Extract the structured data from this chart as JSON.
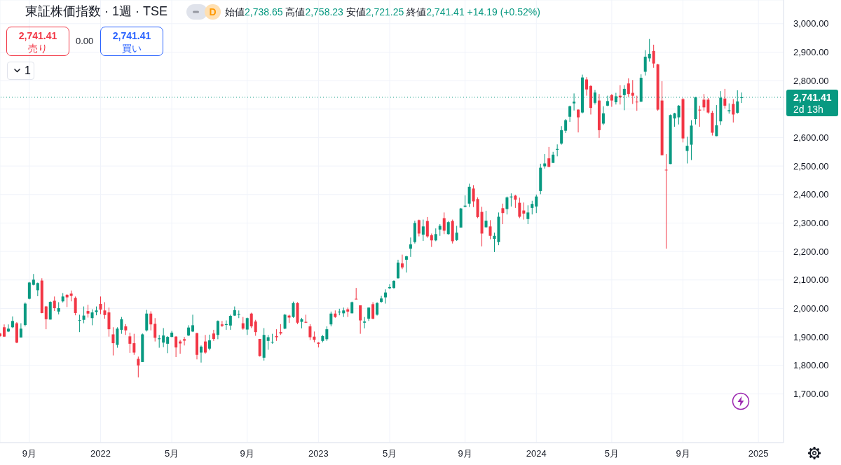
{
  "chart_data": {
    "type": "candlestick",
    "title": "東証株価指数 · 1週 · TSE",
    "x": [
      "2021-07-19",
      "2021-07-26",
      "2021-08-02",
      "2021-08-09",
      "2021-08-16",
      "2021-08-23",
      "2021-08-30",
      "2021-09-06",
      "2021-09-13",
      "2021-09-20",
      "2021-09-27",
      "2021-10-04",
      "2021-10-11",
      "2021-10-18",
      "2021-10-25",
      "2021-11-01",
      "2021-11-08",
      "2021-11-15",
      "2021-11-22",
      "2021-11-29",
      "2021-12-06",
      "2021-12-13",
      "2021-12-20",
      "2021-12-27",
      "2022-01-03",
      "2022-01-10",
      "2022-01-17",
      "2022-01-24",
      "2022-01-31",
      "2022-02-07",
      "2022-02-14",
      "2022-02-21",
      "2022-02-28",
      "2022-03-07",
      "2022-03-14",
      "2022-03-21",
      "2022-03-28",
      "2022-04-04",
      "2022-04-11",
      "2022-04-18",
      "2022-04-25",
      "2022-05-02",
      "2022-05-09",
      "2022-05-16",
      "2022-05-23",
      "2022-05-30",
      "2022-06-06",
      "2022-06-13",
      "2022-06-20",
      "2022-06-27",
      "2022-07-04",
      "2022-07-11",
      "2022-07-18",
      "2022-07-25",
      "2022-08-01",
      "2022-08-08",
      "2022-08-15",
      "2022-08-22",
      "2022-08-29",
      "2022-09-05",
      "2022-09-12",
      "2022-09-19",
      "2022-09-26",
      "2022-10-03",
      "2022-10-10",
      "2022-10-17",
      "2022-10-24",
      "2022-10-31",
      "2022-11-07",
      "2022-11-14",
      "2022-11-21",
      "2022-11-28",
      "2022-12-05",
      "2022-12-12",
      "2022-12-19",
      "2022-12-26",
      "2023-01-02",
      "2023-01-09",
      "2023-01-16",
      "2023-01-23",
      "2023-01-30",
      "2023-02-06",
      "2023-02-13",
      "2023-02-20",
      "2023-02-27",
      "2023-03-06",
      "2023-03-13",
      "2023-03-20",
      "2023-03-27",
      "2023-04-03",
      "2023-04-10",
      "2023-04-17",
      "2023-04-24",
      "2023-05-01",
      "2023-05-08",
      "2023-05-15",
      "2023-05-22",
      "2023-05-29",
      "2023-06-05",
      "2023-06-12",
      "2023-06-19",
      "2023-06-26",
      "2023-07-03",
      "2023-07-10",
      "2023-07-17",
      "2023-07-24",
      "2023-07-31",
      "2023-08-07",
      "2023-08-14",
      "2023-08-21",
      "2023-08-28",
      "2023-09-04",
      "2023-09-11",
      "2023-09-18",
      "2023-09-25",
      "2023-10-02",
      "2023-10-09",
      "2023-10-16",
      "2023-10-23",
      "2023-10-30",
      "2023-11-06",
      "2023-11-13",
      "2023-11-20",
      "2023-11-27",
      "2023-12-04",
      "2023-12-11",
      "2023-12-18",
      "2023-12-25",
      "2024-01-01",
      "2024-01-08",
      "2024-01-15",
      "2024-01-22",
      "2024-01-29",
      "2024-02-05",
      "2024-02-12",
      "2024-02-19",
      "2024-02-26",
      "2024-03-04",
      "2024-03-11",
      "2024-03-18",
      "2024-03-25",
      "2024-04-01",
      "2024-04-08",
      "2024-04-15",
      "2024-04-22",
      "2024-04-29",
      "2024-05-06",
      "2024-05-13",
      "2024-05-20",
      "2024-05-27",
      "2024-06-03",
      "2024-06-10",
      "2024-06-17",
      "2024-06-24",
      "2024-07-01",
      "2024-07-08",
      "2024-07-15",
      "2024-07-22",
      "2024-07-29",
      "2024-08-05",
      "2024-08-12",
      "2024-08-19",
      "2024-08-26",
      "2024-09-02",
      "2024-09-09",
      "2024-09-16",
      "2024-09-23",
      "2024-09-30",
      "2024-10-07",
      "2024-10-14",
      "2024-10-21",
      "2024-10-28",
      "2024-11-04",
      "2024-11-11",
      "2024-11-18",
      "2024-11-25",
      "2024-12-02",
      "2024-12-09"
    ],
    "ohlc": [
      [
        1912,
        1914,
        1900,
        1903
      ],
      [
        1934,
        1944,
        1901,
        1901
      ],
      [
        1919,
        1944,
        1917,
        1929
      ],
      [
        1934,
        1972,
        1931,
        1956
      ],
      [
        1948,
        1952,
        1878,
        1880
      ],
      [
        1898,
        1948,
        1898,
        1929
      ],
      [
        1942,
        2021,
        1937,
        2017
      ],
      [
        2034,
        2093,
        2032,
        2091
      ],
      [
        2083,
        2121,
        2081,
        2101
      ],
      [
        2064,
        2091,
        2043,
        2089
      ],
      [
        2098,
        2106,
        1983,
        1984
      ],
      [
        2007,
        2009,
        1927,
        1962
      ],
      [
        1961,
        2025,
        1961,
        2023
      ],
      [
        2027,
        2042,
        1991,
        2001
      ],
      [
        1989,
        2022,
        1979,
        2001
      ],
      [
        2025,
        2054,
        2021,
        2042
      ],
      [
        2048,
        2050,
        2005,
        2039
      ],
      [
        2052,
        2063,
        2025,
        2044
      ],
      [
        2037,
        2042,
        1976,
        1984
      ],
      [
        1957,
        1978,
        1917,
        1959
      ],
      [
        1960,
        2007,
        1948,
        1975
      ],
      [
        1991,
        2013,
        1968,
        1982
      ],
      [
        1966,
        1997,
        1941,
        1986
      ],
      [
        1987,
        2007,
        1976,
        1993
      ],
      [
        2016,
        2042,
        1980,
        1996
      ],
      [
        1993,
        2022,
        1964,
        1977
      ],
      [
        1986,
        2003,
        1901,
        1927
      ],
      [
        1909,
        1934,
        1835,
        1878
      ],
      [
        1872,
        1934,
        1862,
        1929
      ],
      [
        1925,
        1970,
        1911,
        1962
      ],
      [
        1937,
        1945,
        1907,
        1923
      ],
      [
        1902,
        1915,
        1844,
        1876
      ],
      [
        1878,
        1911,
        1837,
        1845
      ],
      [
        1823,
        1831,
        1758,
        1800
      ],
      [
        1812,
        1912,
        1812,
        1909
      ],
      [
        1923,
        1995,
        1919,
        1982
      ],
      [
        1982,
        1990,
        1923,
        1944
      ],
      [
        1946,
        1966,
        1884,
        1897
      ],
      [
        1892,
        1907,
        1862,
        1895
      ],
      [
        1880,
        1931,
        1864,
        1905
      ],
      [
        1876,
        1903,
        1843,
        1900
      ],
      [
        1900,
        1921,
        1899,
        1915
      ],
      [
        1901,
        1903,
        1829,
        1863
      ],
      [
        1884,
        1890,
        1841,
        1877
      ],
      [
        1892,
        1900,
        1870,
        1887
      ],
      [
        1905,
        1941,
        1903,
        1933
      ],
      [
        1919,
        1978,
        1917,
        1941
      ],
      [
        1913,
        1915,
        1821,
        1837
      ],
      [
        1845,
        1870,
        1810,
        1866
      ],
      [
        1884,
        1907,
        1841,
        1845
      ],
      [
        1859,
        1908,
        1853,
        1888
      ],
      [
        1912,
        1925,
        1886,
        1893
      ],
      [
        1907,
        1958,
        1892,
        1956
      ],
      [
        1944,
        1956,
        1935,
        1939
      ],
      [
        1942,
        1958,
        1925,
        1945
      ],
      [
        1940,
        1978,
        1925,
        1974
      ],
      [
        1975,
        2007,
        1974,
        1994
      ],
      [
        1979,
        1993,
        1966,
        1980
      ],
      [
        1948,
        1970,
        1925,
        1929
      ],
      [
        1926,
        1968,
        1907,
        1966
      ],
      [
        1982,
        1985,
        1931,
        1937
      ],
      [
        1954,
        1960,
        1904,
        1917
      ],
      [
        1893,
        1893,
        1831,
        1833
      ],
      [
        1827,
        1931,
        1817,
        1907
      ],
      [
        1886,
        1907,
        1855,
        1899
      ],
      [
        1881,
        1911,
        1876,
        1883
      ],
      [
        1903,
        1927,
        1886,
        1899
      ],
      [
        1917,
        1945,
        1907,
        1912
      ],
      [
        1929,
        1981,
        1927,
        1978
      ],
      [
        1975,
        1978,
        1949,
        1968
      ],
      [
        1970,
        2024,
        1967,
        2019
      ],
      [
        2019,
        2022,
        1945,
        1950
      ],
      [
        1953,
        1967,
        1930,
        1962
      ],
      [
        1953,
        1978,
        1949,
        1950
      ],
      [
        1937,
        1945,
        1889,
        1899
      ],
      [
        1901,
        1919,
        1881,
        1890
      ],
      [
        1880,
        1882,
        1863,
        1876
      ],
      [
        1886,
        1907,
        1881,
        1903
      ],
      [
        1892,
        1937,
        1886,
        1927
      ],
      [
        1944,
        1989,
        1937,
        1982
      ],
      [
        1982,
        1993,
        1967,
        1970
      ],
      [
        1986,
        1999,
        1976,
        1989
      ],
      [
        1983,
        2003,
        1970,
        1993
      ],
      [
        1997,
        2003,
        1970,
        1989
      ],
      [
        1983,
        2024,
        1983,
        2022
      ],
      [
        2034,
        2072,
        2032,
        2032
      ],
      [
        2011,
        2011,
        1911,
        1958
      ],
      [
        1950,
        1970,
        1930,
        1954
      ],
      [
        1964,
        2003,
        1956,
        2003
      ],
      [
        2015,
        2022,
        1962,
        1964
      ],
      [
        1978,
        2022,
        1975,
        2019
      ],
      [
        2023,
        2044,
        2020,
        2035
      ],
      [
        2039,
        2067,
        2017,
        2056
      ],
      [
        2071,
        2085,
        2068,
        2075
      ],
      [
        2072,
        2099,
        2069,
        2097
      ],
      [
        2106,
        2171,
        2105,
        2161
      ],
      [
        2158,
        2189,
        2138,
        2144
      ],
      [
        2171,
        2185,
        2126,
        2183
      ],
      [
        2210,
        2249,
        2181,
        2225
      ],
      [
        2233,
        2308,
        2228,
        2300
      ],
      [
        2310,
        2312,
        2253,
        2263
      ],
      [
        2259,
        2312,
        2237,
        2288
      ],
      [
        2307,
        2321,
        2248,
        2253
      ],
      [
        2257,
        2263,
        2216,
        2239
      ],
      [
        2239,
        2281,
        2236,
        2261
      ],
      [
        2277,
        2296,
        2255,
        2290
      ],
      [
        2317,
        2337,
        2261,
        2273
      ],
      [
        2261,
        2307,
        2259,
        2303
      ],
      [
        2307,
        2312,
        2228,
        2236
      ],
      [
        2240,
        2290,
        2237,
        2266
      ],
      [
        2284,
        2353,
        2284,
        2351
      ],
      [
        2357,
        2397,
        2355,
        2361
      ],
      [
        2368,
        2438,
        2356,
        2427
      ],
      [
        2421,
        2433,
        2356,
        2376
      ],
      [
        2384,
        2390,
        2317,
        2321
      ],
      [
        2339,
        2357,
        2218,
        2263
      ],
      [
        2285,
        2343,
        2284,
        2308
      ],
      [
        2288,
        2310,
        2243,
        2255
      ],
      [
        2244,
        2266,
        2198,
        2255
      ],
      [
        2233,
        2337,
        2222,
        2322
      ],
      [
        2352,
        2368,
        2296,
        2335
      ],
      [
        2349,
        2393,
        2330,
        2390
      ],
      [
        2390,
        2404,
        2358,
        2393
      ],
      [
        2396,
        2399,
        2353,
        2382
      ],
      [
        2371,
        2389,
        2317,
        2322
      ],
      [
        2344,
        2372,
        2312,
        2333
      ],
      [
        2314,
        2362,
        2296,
        2337
      ],
      [
        2353,
        2378,
        2330,
        2367
      ],
      [
        2358,
        2400,
        2335,
        2393
      ],
      [
        2412,
        2508,
        2401,
        2494
      ],
      [
        2499,
        2542,
        2491,
        2509
      ],
      [
        2527,
        2567,
        2497,
        2497
      ],
      [
        2511,
        2550,
        2511,
        2540
      ],
      [
        2557,
        2576,
        2534,
        2560
      ],
      [
        2579,
        2640,
        2575,
        2626
      ],
      [
        2624,
        2665,
        2616,
        2661
      ],
      [
        2673,
        2712,
        2655,
        2710
      ],
      [
        2720,
        2755,
        2695,
        2726
      ],
      [
        2698,
        2699,
        2618,
        2671
      ],
      [
        2688,
        2821,
        2685,
        2811
      ],
      [
        2804,
        2812,
        2747,
        2769
      ],
      [
        2781,
        2784,
        2681,
        2704
      ],
      [
        2722,
        2767,
        2716,
        2758
      ],
      [
        2730,
        2753,
        2599,
        2626
      ],
      [
        2649,
        2710,
        2644,
        2685
      ],
      [
        2712,
        2747,
        2710,
        2728
      ],
      [
        2749,
        2753,
        2708,
        2730
      ],
      [
        2724,
        2757,
        2716,
        2745
      ],
      [
        2747,
        2784,
        2716,
        2741
      ],
      [
        2749,
        2784,
        2696,
        2771
      ],
      [
        2790,
        2808,
        2743,
        2753
      ],
      [
        2757,
        2802,
        2718,
        2747
      ],
      [
        2726,
        2747,
        2694,
        2724
      ],
      [
        2726,
        2822,
        2725,
        2810
      ],
      [
        2831,
        2907,
        2818,
        2884
      ],
      [
        2878,
        2946,
        2867,
        2894
      ],
      [
        2904,
        2926,
        2845,
        2860
      ],
      [
        2857,
        2859,
        2694,
        2698
      ],
      [
        2730,
        2798,
        2538,
        2538
      ],
      [
        2487,
        2542,
        2210,
        2485
      ],
      [
        2507,
        2681,
        2507,
        2679
      ],
      [
        2667,
        2687,
        2638,
        2685
      ],
      [
        2671,
        2714,
        2646,
        2712
      ],
      [
        2735,
        2739,
        2583,
        2597
      ],
      [
        2553,
        2603,
        2509,
        2571
      ],
      [
        2575,
        2661,
        2521,
        2642
      ],
      [
        2665,
        2743,
        2646,
        2741
      ],
      [
        2698,
        2712,
        2638,
        2695
      ],
      [
        2733,
        2753,
        2694,
        2706
      ],
      [
        2733,
        2739,
        2684,
        2688
      ],
      [
        2687,
        2694,
        2607,
        2617
      ],
      [
        2605,
        2714,
        2605,
        2643
      ],
      [
        2657,
        2763,
        2644,
        2740
      ],
      [
        2737,
        2771,
        2702,
        2712
      ],
      [
        2692,
        2720,
        2684,
        2696
      ],
      [
        2718,
        2735,
        2653,
        2681
      ],
      [
        2687,
        2766,
        2684,
        2727
      ],
      [
        2738.65,
        2758.23,
        2721.25,
        2741.41
      ]
    ],
    "colors": [
      "#f23645",
      "#f23645",
      "#089981",
      "#089981",
      "#f23645",
      "#089981",
      "#089981",
      "#089981",
      "#089981",
      "#089981",
      "#f23645",
      "#f23645",
      "#089981",
      "#f23645",
      "#089981",
      "#089981",
      "#f23645",
      "#f23645",
      "#f23645",
      "#089981",
      "#089981",
      "#f23645",
      "#089981",
      "#089981",
      "#f23645",
      "#f23645",
      "#f23645",
      "#f23645",
      "#089981",
      "#089981",
      "#f23645",
      "#f23645",
      "#f23645",
      "#f23645",
      "#089981",
      "#089981",
      "#f23645",
      "#f23645",
      "#089981",
      "#089981",
      "#089981",
      "#089981",
      "#f23645",
      "#f23645",
      "#f23645",
      "#089981",
      "#089981",
      "#f23645",
      "#089981",
      "#f23645",
      "#089981",
      "#f23645",
      "#089981",
      "#f23645",
      "#089981",
      "#089981",
      "#089981",
      "#089981",
      "#f23645",
      "#089981",
      "#f23645",
      "#f23645",
      "#f23645",
      "#089981",
      "#089981",
      "#089981",
      "#f23645",
      "#f23645",
      "#089981",
      "#f23645",
      "#089981",
      "#f23645",
      "#089981",
      "#f23645",
      "#f23645",
      "#f23645",
      "#f23645",
      "#089981",
      "#089981",
      "#089981",
      "#f23645",
      "#089981",
      "#089981",
      "#f23645",
      "#089981",
      "#f23645",
      "#f23645",
      "#089981",
      "#089981",
      "#f23645",
      "#089981",
      "#089981",
      "#089981",
      "#089981",
      "#089981",
      "#089981",
      "#f23645",
      "#089981",
      "#089981",
      "#089981",
      "#f23645",
      "#089981",
      "#f23645",
      "#f23645",
      "#089981",
      "#089981",
      "#f23645",
      "#089981",
      "#f23645",
      "#089981",
      "#089981",
      "#089981",
      "#089981",
      "#f23645",
      "#f23645",
      "#f23645",
      "#089981",
      "#f23645",
      "#089981",
      "#089981",
      "#f23645",
      "#089981",
      "#089981",
      "#f23645",
      "#f23645",
      "#f23645",
      "#089981",
      "#089981",
      "#089981",
      "#089981",
      "#089981",
      "#f23645",
      "#089981",
      "#089981",
      "#089981",
      "#089981",
      "#089981",
      "#089981",
      "#f23645",
      "#089981",
      "#f23645",
      "#f23645",
      "#089981",
      "#f23645",
      "#089981",
      "#089981",
      "#f23645",
      "#089981",
      "#f23645",
      "#089981",
      "#f23645",
      "#f23645",
      "#f23645",
      "#089981",
      "#089981",
      "#089981",
      "#f23645",
      "#f23645",
      "#f23645",
      "#f23645",
      "#089981",
      "#089981",
      "#089981",
      "#f23645",
      "#089981",
      "#089981",
      "#089981",
      "#f23645",
      "#f23645",
      "#f23645",
      "#f23645",
      "#089981",
      "#089981",
      "#f23645",
      "#089981",
      "#f23645",
      "#089981",
      "#089981"
    ],
    "xlim": [
      "2021-07-19",
      "2025-02-17"
    ],
    "xticks": [
      {
        "value": "2021-09-06",
        "label": "9月"
      },
      {
        "value": "2022-01-03",
        "label": "2022"
      },
      {
        "value": "2022-05-02",
        "label": "5月"
      },
      {
        "value": "2022-09-05",
        "label": "9月"
      },
      {
        "value": "2023-01-02",
        "label": "2023"
      },
      {
        "value": "2023-05-01",
        "label": "5月"
      },
      {
        "value": "2023-09-04",
        "label": "9月"
      },
      {
        "value": "2024-01-01",
        "label": "2024"
      },
      {
        "value": "2024-05-06",
        "label": "5月"
      },
      {
        "value": "2024-09-02",
        "label": "9月"
      },
      {
        "value": "2025-01-06",
        "label": "2025"
      }
    ],
    "ylim": [
      1529,
      3083
    ],
    "yticks": [
      {
        "value": 1700,
        "label": "1,700.00"
      },
      {
        "value": 1800,
        "label": "1,800.00"
      },
      {
        "value": 1900,
        "label": "1,900.00"
      },
      {
        "value": 2000,
        "label": "2,000.00"
      },
      {
        "value": 2100,
        "label": "2,100.00"
      },
      {
        "value": 2200,
        "label": "2,200.00"
      },
      {
        "value": 2300,
        "label": "2,300.00"
      },
      {
        "value": 2400,
        "label": "2,400.00"
      },
      {
        "value": 2500,
        "label": "2,500.00"
      },
      {
        "value": 2600,
        "label": "2,600.00"
      },
      {
        "value": 2700,
        "label": null
      },
      {
        "value": 2800,
        "label": "2,800.00"
      },
      {
        "value": 2900,
        "label": "2,900.00"
      },
      {
        "value": 3000,
        "label": "3,000.00"
      }
    ],
    "grid": true,
    "ref_lines": [
      {
        "axis": "y",
        "value": 2741.41,
        "label": "2,741.41",
        "color": "#089981",
        "line_style": "dotted"
      }
    ],
    "annotations": [
      "始値2,738.65 高値2,758.23 安値2,721.25 終値2,741.41 +14.19 (+0.52%)",
      "2,741.41",
      "売り",
      "0.00",
      "2,741.41",
      "買い",
      "1",
      "2d 13h",
      "D"
    ]
  }
}
